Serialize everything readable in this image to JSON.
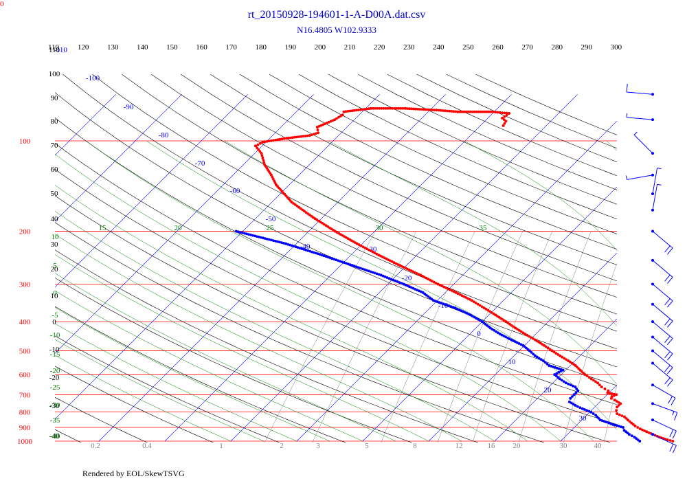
{
  "header": {
    "corner_label": "0",
    "footer": "Rendered by EOL/SkewTSVG"
  },
  "colors": {
    "isobar": "#ff0000",
    "isotherm": "#0000ff",
    "dry_adiabat": "#000000",
    "moist_adiabat": "#008000",
    "mixing_ratio": "#808080",
    "temperature": "#ff0000",
    "dewpoint": "#0000ff",
    "wind": "#0000ff"
  },
  "chart_data": {
    "type": "skew-t",
    "title": "rt_20150928-194601-1-A-D00A.dat.csv",
    "subtitle": "N16.4805 W102.9333",
    "pressure_levels": [
      100,
      200,
      300,
      400,
      500,
      600,
      700,
      800,
      900,
      1000
    ],
    "top_scale_labels": [
      "110",
      "120",
      "130",
      "140",
      "150",
      "160",
      "170",
      "180",
      "190",
      "200",
      "210",
      "220",
      "230",
      "240",
      "250",
      "260",
      "270",
      "280",
      "290",
      "300"
    ],
    "isotherm_labels": [
      "-110",
      "-100",
      "-90",
      "-80",
      "-70",
      "-60",
      "-50",
      "-40",
      "-30",
      "-20",
      "-10",
      "0",
      "10",
      "20",
      "30"
    ],
    "left_black_labels": [
      "110",
      "100",
      "90",
      "80",
      "70",
      "60",
      "50",
      "40",
      "30",
      "20",
      "10",
      "0",
      "-10",
      "-20",
      "-30",
      "-40"
    ],
    "left_green_labels": [
      "10",
      "5",
      "0",
      "-5",
      "-10",
      "-15",
      "-20",
      "-25",
      "-30",
      "-35",
      "-40"
    ],
    "moist_top_labels": [
      "15",
      "20",
      "25",
      "30",
      "35"
    ],
    "mixing_ratio_labels": [
      "0.2",
      "0.4",
      "1",
      "2",
      "3",
      "5",
      "8",
      "12",
      "16",
      "20",
      "30",
      "40"
    ],
    "temperature_c": [
      [
        1000,
        27.0
      ],
      [
        990,
        26.0
      ],
      [
        970,
        24.4
      ],
      [
        950,
        23.0
      ],
      [
        930,
        21.6
      ],
      [
        910,
        20.2
      ],
      [
        890,
        19.0
      ],
      [
        870,
        18.0
      ],
      [
        850,
        17.0
      ],
      [
        830,
        16.0
      ],
      [
        810,
        14.4
      ],
      [
        790,
        13.8
      ],
      [
        770,
        13.4
      ],
      [
        750,
        13.4
      ],
      [
        730,
        12.0
      ],
      [
        720,
        11.2
      ],
      [
        710,
        11.0
      ],
      [
        700,
        11.4
      ],
      [
        690,
        9.8
      ],
      [
        680,
        9.6
      ],
      [
        670,
        8.8
      ],
      [
        660,
        8.0
      ],
      [
        640,
        6.8
      ],
      [
        620,
        5.2
      ],
      [
        600,
        3.6
      ],
      [
        580,
        2.2
      ],
      [
        560,
        0.8
      ],
      [
        540,
        -1.0
      ],
      [
        520,
        -3.0
      ],
      [
        500,
        -5.0
      ],
      [
        480,
        -7.0
      ],
      [
        460,
        -9.2
      ],
      [
        440,
        -11.6
      ],
      [
        420,
        -14.0
      ],
      [
        400,
        -16.4
      ],
      [
        380,
        -19.0
      ],
      [
        360,
        -21.8
      ],
      [
        340,
        -24.8
      ],
      [
        320,
        -28.4
      ],
      [
        300,
        -32.4
      ],
      [
        280,
        -36.4
      ],
      [
        260,
        -41.0
      ],
      [
        240,
        -45.8
      ],
      [
        220,
        -50.8
      ],
      [
        200,
        -56.0
      ],
      [
        180,
        -61.4
      ],
      [
        160,
        -67.0
      ],
      [
        140,
        -72.0
      ],
      [
        130,
        -74.2
      ],
      [
        120,
        -76.8
      ],
      [
        110,
        -79.0
      ],
      [
        104,
        -81.0
      ],
      [
        101,
        -80.5
      ],
      [
        98,
        -77.5
      ],
      [
        96,
        -74.4
      ],
      [
        94,
        -73.5
      ],
      [
        90,
        -74.5
      ],
      [
        85,
        -73.0
      ],
      [
        82,
        -72.5
      ],
      [
        80,
        -72.8
      ],
      [
        78,
        -69.2
      ],
      [
        78,
        -64.0
      ],
      [
        79,
        -59.0
      ],
      [
        80,
        -55.5
      ],
      [
        80,
        -50.5
      ],
      [
        81,
        -47.5
      ],
      [
        84,
        -47.8
      ],
      [
        86,
        -46.8
      ],
      [
        89,
        -46.5
      ]
    ],
    "dewpoint_c": [
      [
        1000,
        22.0
      ],
      [
        970,
        20.6
      ],
      [
        950,
        19.4
      ],
      [
        920,
        18.0
      ],
      [
        900,
        17.4
      ],
      [
        880,
        15.4
      ],
      [
        850,
        12.8
      ],
      [
        820,
        11.4
      ],
      [
        800,
        10.2
      ],
      [
        780,
        8.4
      ],
      [
        760,
        6.8
      ],
      [
        740,
        5.4
      ],
      [
        720,
        5.0
      ],
      [
        700,
        5.0
      ],
      [
        680,
        5.0
      ],
      [
        660,
        4.0
      ],
      [
        640,
        2.0
      ],
      [
        620,
        0.4
      ],
      [
        600,
        -1.0
      ],
      [
        580,
        -0.4
      ],
      [
        560,
        -3.2
      ],
      [
        540,
        -4.8
      ],
      [
        520,
        -6.8
      ],
      [
        500,
        -8.4
      ],
      [
        480,
        -10.2
      ],
      [
        460,
        -12.8
      ],
      [
        440,
        -15.4
      ],
      [
        420,
        -17.8
      ],
      [
        400,
        -20.0
      ],
      [
        380,
        -22.8
      ],
      [
        360,
        -26.2
      ],
      [
        340,
        -30.6
      ],
      [
        320,
        -33.4
      ],
      [
        300,
        -37.6
      ],
      [
        280,
        -42.4
      ],
      [
        260,
        -48.2
      ],
      [
        240,
        -54.4
      ],
      [
        220,
        -61.6
      ],
      [
        200,
        -71.0
      ]
    ],
    "wind_barbs": [
      {
        "p": 70,
        "speed_kt": 10,
        "dir_deg": 275
      },
      {
        "p": 85,
        "speed_kt": 5,
        "dir_deg": 275
      },
      {
        "p": 110,
        "speed_kt": 5,
        "dir_deg": 315
      },
      {
        "p": 130,
        "speed_kt": 5,
        "dir_deg": 260
      },
      {
        "p": 150,
        "speed_kt": 5,
        "dir_deg": 10
      },
      {
        "p": 170,
        "speed_kt": 5,
        "dir_deg": 10
      },
      {
        "p": 200,
        "speed_kt": 20,
        "dir_deg": 130
      },
      {
        "p": 250,
        "speed_kt": 20,
        "dir_deg": 130
      },
      {
        "p": 300,
        "speed_kt": 20,
        "dir_deg": 130
      },
      {
        "p": 350,
        "speed_kt": 20,
        "dir_deg": 130
      },
      {
        "p": 400,
        "speed_kt": 20,
        "dir_deg": 130
      },
      {
        "p": 450,
        "speed_kt": 20,
        "dir_deg": 130
      },
      {
        "p": 500,
        "speed_kt": 20,
        "dir_deg": 130
      },
      {
        "p": 550,
        "speed_kt": 20,
        "dir_deg": 130
      },
      {
        "p": 650,
        "speed_kt": 20,
        "dir_deg": 120
      },
      {
        "p": 750,
        "speed_kt": 15,
        "dir_deg": 110
      },
      {
        "p": 850,
        "speed_kt": 20,
        "dir_deg": 115
      },
      {
        "p": 950,
        "speed_kt": 20,
        "dir_deg": 115
      }
    ]
  }
}
